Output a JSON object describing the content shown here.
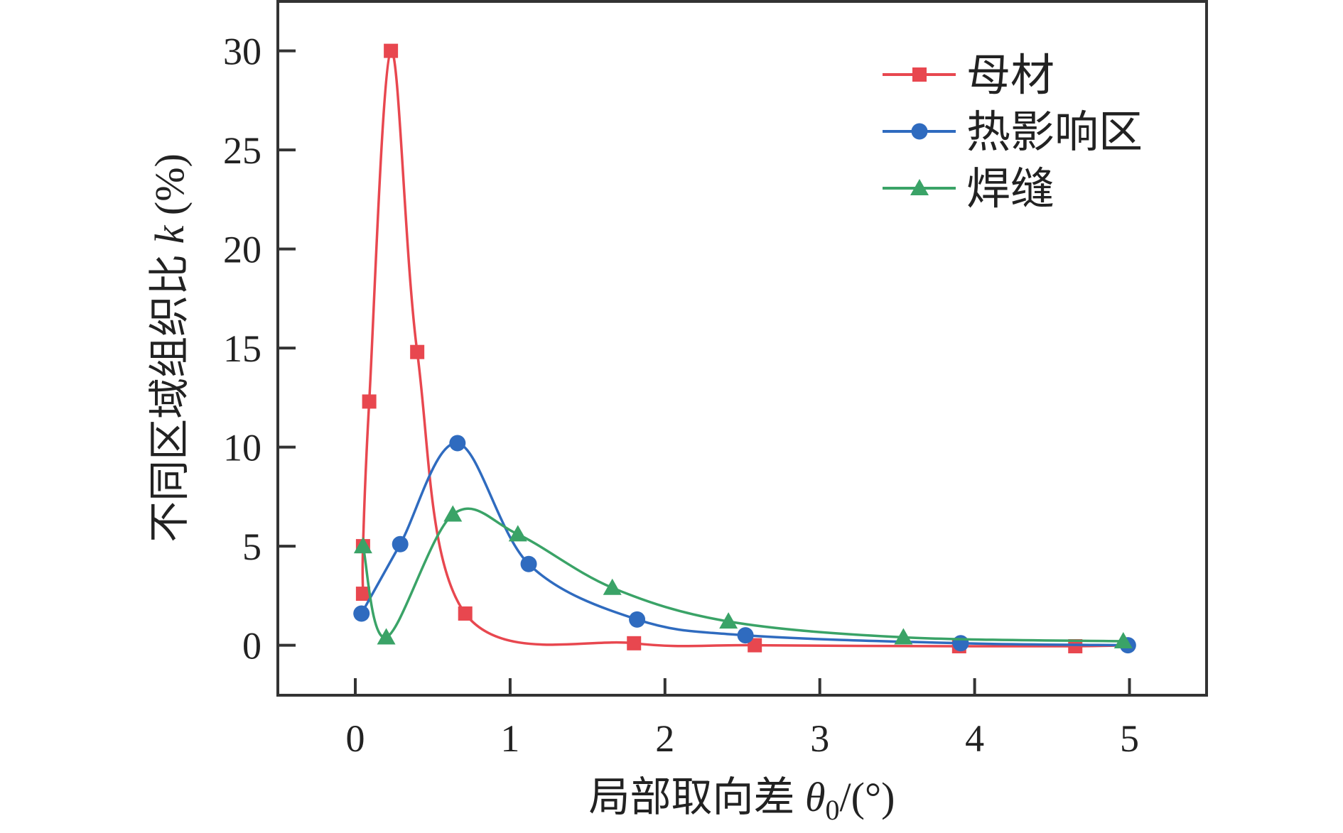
{
  "chart_data": {
    "type": "line",
    "title": "",
    "xlabel": "局部取向差 θ0/(°)",
    "xlabel_parts": {
      "prefix": "局部取向差 ",
      "symbol": "θ",
      "subscript": "0",
      "suffix": "/(°)"
    },
    "ylabel": "不同区域组织比 k (%)",
    "ylabel_parts": {
      "prefix": "不同区域组织比 ",
      "symbol": "k",
      "suffix": " (%)"
    },
    "xlim": [
      -0.5,
      5.5
    ],
    "ylim": [
      -2.5,
      32.5
    ],
    "xticks": [
      0,
      1,
      2,
      3,
      4,
      5
    ],
    "xtick_labels": [
      "0",
      "1",
      "2",
      "3",
      "4",
      "5"
    ],
    "yticks": [
      0,
      5,
      10,
      15,
      20,
      25,
      30
    ],
    "ytick_labels": [
      "0",
      "5",
      "10",
      "15",
      "20",
      "25",
      "30"
    ],
    "grid": false,
    "legend_position": "top-right",
    "series": [
      {
        "name": "母材",
        "color": "#e8474f",
        "marker": "square",
        "x": [
          0.05,
          0.05,
          0.09,
          0.23,
          0.4,
          0.71,
          1.8,
          2.58,
          3.9,
          4.65,
          5.0
        ],
        "y": [
          2.6,
          5.0,
          12.3,
          30.0,
          14.8,
          1.6,
          0.1,
          0.0,
          -0.05,
          -0.05,
          0.0
        ],
        "marker_count": 10
      },
      {
        "name": "热影响区",
        "color": "#2f6bbf",
        "marker": "circle",
        "x": [
          0.04,
          0.29,
          0.66,
          1.12,
          1.82,
          2.52,
          3.91,
          4.99
        ],
        "y": [
          1.6,
          5.1,
          10.2,
          4.1,
          1.3,
          0.5,
          0.1,
          0.0
        ]
      },
      {
        "name": "焊缝",
        "color": "#3aa367",
        "marker": "triangle",
        "x": [
          0.05,
          0.2,
          0.63,
          1.05,
          1.66,
          2.41,
          3.54,
          4.96
        ],
        "y": [
          5.0,
          0.4,
          6.6,
          5.6,
          2.9,
          1.2,
          0.4,
          0.2
        ]
      }
    ]
  }
}
